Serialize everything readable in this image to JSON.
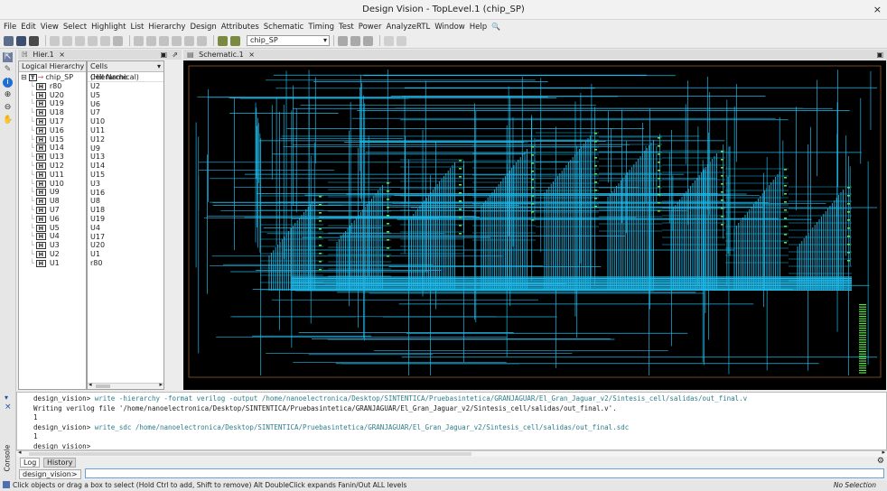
{
  "window": {
    "title": "Design Vision - TopLevel.1 (chip_SP)",
    "close": "×"
  },
  "menu": [
    "File",
    "Edit",
    "View",
    "Select",
    "Highlight",
    "List",
    "Hierarchy",
    "Design",
    "Attributes",
    "Schematic",
    "Timing",
    "Test",
    "Power",
    "AnalyzeRTL",
    "Window",
    "Help"
  ],
  "toolbar": {
    "design_select": "chip_SP"
  },
  "tabs": {
    "hier": "Hier.1",
    "schematic": "Schematic.1"
  },
  "hierarchy": {
    "header": "Logical Hierarchy",
    "root": "chip_SP",
    "root_badge": "T",
    "badge": "H",
    "instances": [
      "r80",
      "U20",
      "U19",
      "U18",
      "U17",
      "U16",
      "U15",
      "U14",
      "U13",
      "U12",
      "U11",
      "U10",
      "U9",
      "U8",
      "U7",
      "U6",
      "U5",
      "U4",
      "U3",
      "U2",
      "U1"
    ]
  },
  "cells": {
    "header": "Cells (Hierarchical)",
    "column": "Cell Name",
    "rows": [
      "U2",
      "U5",
      "U6",
      "U7",
      "U10",
      "U11",
      "U12",
      "U9",
      "U13",
      "U14",
      "U15",
      "U3",
      "U16",
      "U8",
      "U18",
      "U19",
      "U4",
      "U17",
      "U20",
      "U1",
      "r80"
    ]
  },
  "console": {
    "lines": [
      {
        "prompt": "design_vision>",
        "cmd": "write -hierarchy -format verilog -output /home/nanoelectronica/Desktop/SINTENTICA/Pruebasintetica/GRANJAGUAR/El_Gran_Jaguar_v2/Sintesis_cell/salidas/out_final.v"
      },
      {
        "prompt": "",
        "cmd": "",
        "text": "Writing verilog file '/home/nanoelectronica/Desktop/SINTENTICA/Pruebasintetica/GRANJAGUAR/El_Gran_Jaguar_v2/Sintesis_cell/salidas/out_final.v'."
      },
      {
        "prompt": "",
        "cmd": "",
        "text": "1"
      },
      {
        "prompt": "design_vision>",
        "cmd": "write_sdc /home/nanoelectronica/Desktop/SINTENTICA/Pruebasintetica/GRANJAGUAR/El_Gran_Jaguar_v2/Sintesis_cell/salidas/out_final.sdc"
      },
      {
        "prompt": "",
        "cmd": "",
        "text": "1"
      },
      {
        "prompt": "design_vision>",
        "cmd": ""
      }
    ],
    "tabs": [
      "Log",
      "History"
    ],
    "side_label": "Console",
    "input_prompt": "design_vision>"
  },
  "status": {
    "left": "Click objects or drag a box to select (Hold Ctrl to add, Shift to remove) Alt DoubleClick expands Fanin/Out ALL levels",
    "right": "No Selection"
  },
  "colors": {
    "wire": "#1fb8e8",
    "pin": "#5ee04a",
    "background": "#000000",
    "cell_border": "#8b5a2b"
  }
}
